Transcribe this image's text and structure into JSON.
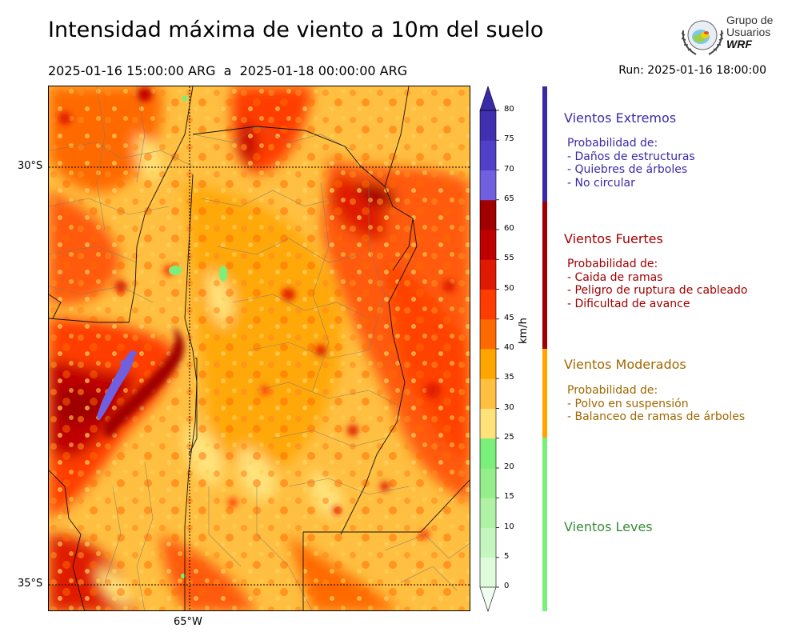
{
  "header": {
    "title": "Intensidad máxima de viento a 10m del suelo",
    "range": "2025-01-16 15:00:00 ARG  a  2025-01-18 00:00:00 ARG",
    "run": "Run: 2025-01-16 18:00:00"
  },
  "logo": {
    "line1": "Grupo de",
    "line2": "Usuarios",
    "line3": "WRF"
  },
  "map": {
    "lat_labels": [
      "30°S",
      "35°S"
    ],
    "lon_labels": [
      "65°W"
    ]
  },
  "colorbar": {
    "unit": "km/h",
    "ticks": [
      "0",
      "5",
      "10",
      "15",
      "20",
      "25",
      "30",
      "35",
      "40",
      "45",
      "50",
      "55",
      "60",
      "65",
      "70",
      "75",
      "80"
    ],
    "colors": [
      "#f0fff0",
      "#e0fbdc",
      "#c6f6bf",
      "#b0f3a6",
      "#94ef8a",
      "#7af07a",
      "#ffe27a",
      "#ffbf40",
      "#ffa500",
      "#ff6a00",
      "#ff3c00",
      "#e01a00",
      "#c00000",
      "#a00000",
      "#7060e0",
      "#5040c8",
      "#4030b0",
      "#3a2aa8"
    ]
  },
  "categories": [
    {
      "title": "Vientos Extremos",
      "color": "#3a2aa8",
      "lines": [
        "Probabilidad de:",
        "- Daños de estructuras",
        "- Quiebres de árboles",
        "- No circular"
      ]
    },
    {
      "title": "Vientos Fuertes",
      "color": "#a00000",
      "lines": [
        "Probabilidad de:",
        "- Caida de ramas",
        "- Peligro de ruptura de cableado",
        "- Dificultad de avance"
      ]
    },
    {
      "title": "Vientos Moderados",
      "color": "#a06800",
      "lines": [
        "Probabilidad de:",
        "- Polvo en suspensión",
        "- Balanceo de ramas de árboles"
      ]
    },
    {
      "title": "Vientos Leves",
      "color": "#3a8a3a",
      "lines": []
    }
  ]
}
